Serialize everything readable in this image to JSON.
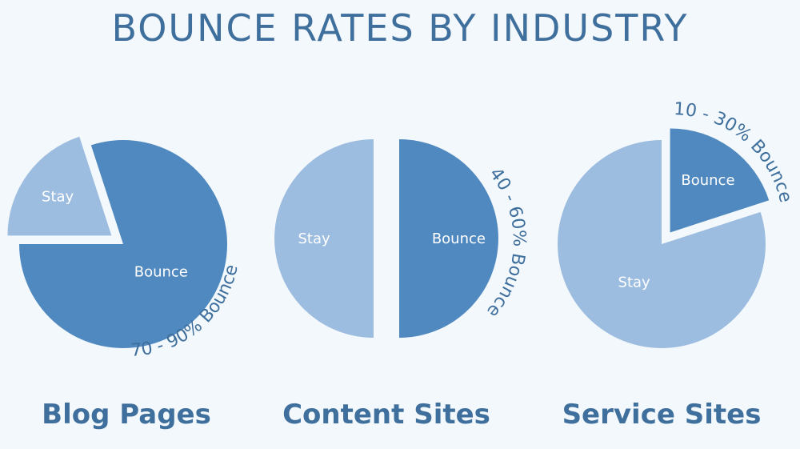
{
  "title": "BOUNCE RATES BY INDUSTRY",
  "colors": {
    "bounce": "#5089bf",
    "stay": "#9dbde0",
    "text": "#3f6f9c",
    "background": "#f3f8fc"
  },
  "chart_data": [
    {
      "type": "pie",
      "title": "Blog Pages",
      "range_label": "70 - 90% Bounce",
      "slices": [
        {
          "label": "Bounce",
          "value": 80,
          "exploded": false
        },
        {
          "label": "Stay",
          "value": 20,
          "exploded": true
        }
      ]
    },
    {
      "type": "pie",
      "title": "Content Sites",
      "range_label": "40 - 60% Bounce",
      "slices": [
        {
          "label": "Bounce",
          "value": 50,
          "exploded": true
        },
        {
          "label": "Stay",
          "value": 50,
          "exploded": true
        }
      ]
    },
    {
      "type": "pie",
      "title": "Service Sites",
      "range_label": "10 - 30% Bounce",
      "slices": [
        {
          "label": "Bounce",
          "value": 20,
          "exploded": true
        },
        {
          "label": "Stay",
          "value": 80,
          "exploded": false
        }
      ]
    }
  ]
}
